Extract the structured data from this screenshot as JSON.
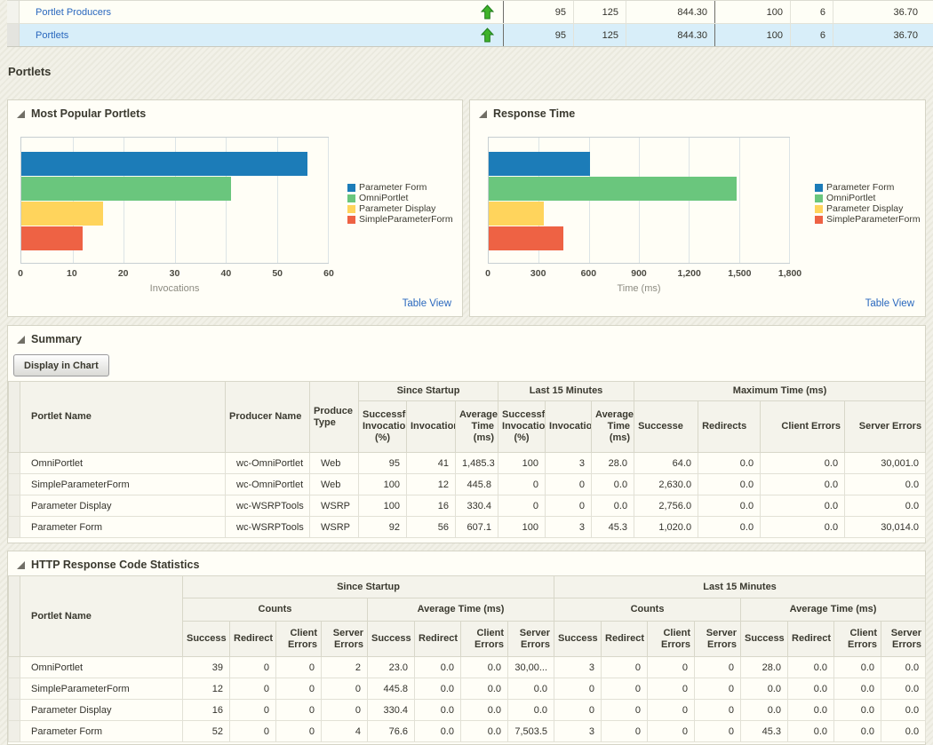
{
  "page": {
    "heading": "Portlets"
  },
  "colors": {
    "link_blue": "#2A68BE",
    "selected_row": "#D8EEF9",
    "trend_arrow_green": "#3FB32A",
    "bar_blue": "#1C7CB8",
    "bar_green": "#6AC67D",
    "bar_yellow": "#FFD45C",
    "bar_red": "#EE6244"
  },
  "top_table": {
    "rows": [
      {
        "label": "Portlet Producers",
        "trend_icon": "green-up-arrow",
        "values": [
          "95",
          "125",
          "844.30",
          "100",
          "6",
          "36.70"
        ],
        "selected": false
      },
      {
        "label": "Portlets",
        "trend_icon": "green-up-arrow",
        "values": [
          "95",
          "125",
          "844.30",
          "100",
          "6",
          "36.70"
        ],
        "selected": true
      }
    ]
  },
  "chart_data": [
    {
      "type": "bar",
      "orientation": "horizontal",
      "title": "Most Popular Portlets",
      "categories": [
        "Parameter Form",
        "OmniPortlet",
        "Parameter Display",
        "SimpleParameterForm"
      ],
      "values": [
        56,
        41,
        16,
        12
      ],
      "xlabel": "Invocations",
      "xlim": [
        0,
        60
      ],
      "xticks": [
        0,
        10,
        20,
        30,
        40,
        50,
        60
      ],
      "xtick_labels": [
        "0",
        "10",
        "20",
        "30",
        "40",
        "50",
        "60"
      ],
      "bar_colors": [
        "#1C7CB8",
        "#6AC67D",
        "#FFD45C",
        "#EE6244"
      ],
      "legend": [
        "Parameter Form",
        "OmniPortlet",
        "Parameter Display",
        "SimpleParameterForm"
      ],
      "legend_position": "right",
      "grid": "vertical",
      "table_view_label": "Table View"
    },
    {
      "type": "bar",
      "orientation": "horizontal",
      "title": "Response Time",
      "categories": [
        "Parameter Form",
        "OmniPortlet",
        "Parameter Display",
        "SimpleParameterForm"
      ],
      "values": [
        607.1,
        1485.3,
        330.4,
        445.8
      ],
      "xlabel": "Time (ms)",
      "xlim": [
        0,
        1800
      ],
      "xticks": [
        0,
        300,
        600,
        900,
        1200,
        1500,
        1800
      ],
      "xtick_labels": [
        "0",
        "300",
        "600",
        "900",
        "1,200",
        "1,500",
        "1,800"
      ],
      "bar_colors": [
        "#1C7CB8",
        "#6AC67D",
        "#FFD45C",
        "#EE6244"
      ],
      "legend": [
        "Parameter Form",
        "OmniPortlet",
        "Parameter Display",
        "SimpleParameterForm"
      ],
      "legend_position": "right",
      "grid": "vertical",
      "table_view_label": "Table View"
    }
  ],
  "summary": {
    "title": "Summary",
    "button_label": "Display in Chart",
    "table": {
      "portlet_name_header": "Portlet Name",
      "producer_name_header": "Producer Name",
      "producer_type_header": "Produce Type",
      "groups": [
        "Since Startup",
        "Last 15 Minutes",
        "Maximum Time (ms)"
      ],
      "sub_headers": [
        "Successfu Invocation (%)",
        "Invocation",
        "Average Time (ms)",
        "Successfu Invocation (%)",
        "Invocation",
        "Average Time (ms)",
        "Successe",
        "Redirects",
        "Client Errors",
        "Server Errors"
      ],
      "rows": [
        [
          "OmniPortlet",
          "wc-OmniPortlet",
          "Web",
          "95",
          "41",
          "1,485.3",
          "100",
          "3",
          "28.0",
          "64.0",
          "0.0",
          "0.0",
          "30,001.0"
        ],
        [
          "SimpleParameterForm",
          "wc-OmniPortlet",
          "Web",
          "100",
          "12",
          "445.8",
          "0",
          "0",
          "0.0",
          "2,630.0",
          "0.0",
          "0.0",
          "0.0"
        ],
        [
          "Parameter Display",
          "wc-WSRPTools",
          "WSRP",
          "100",
          "16",
          "330.4",
          "0",
          "0",
          "0.0",
          "2,756.0",
          "0.0",
          "0.0",
          "0.0"
        ],
        [
          "Parameter Form",
          "wc-WSRPTools",
          "WSRP",
          "92",
          "56",
          "607.1",
          "100",
          "3",
          "45.3",
          "1,020.0",
          "0.0",
          "0.0",
          "30,014.0"
        ]
      ]
    }
  },
  "http_stats": {
    "title": "HTTP Response Code Statistics",
    "table": {
      "portlet_name_header": "Portlet Name",
      "groups": [
        "Since Startup",
        "Last 15 Minutes"
      ],
      "subgroups": [
        "Counts",
        "Average Time (ms)",
        "Counts",
        "Average Time (ms)"
      ],
      "sub_headers": [
        "Success",
        "Redirect",
        "Client Errors",
        "Server Errors",
        "Success",
        "Redirect",
        "Client Errors",
        "Server Errors",
        "Success",
        "Redirect",
        "Client Errors",
        "Server Errors",
        "Success",
        "Redirect",
        "Client Errors",
        "Server Errors"
      ],
      "rows": [
        [
          "OmniPortlet",
          "39",
          "0",
          "0",
          "2",
          "23.0",
          "0.0",
          "0.0",
          "30,00...",
          "3",
          "0",
          "0",
          "0",
          "28.0",
          "0.0",
          "0.0",
          "0.0"
        ],
        [
          "SimpleParameterForm",
          "12",
          "0",
          "0",
          "0",
          "445.8",
          "0.0",
          "0.0",
          "0.0",
          "0",
          "0",
          "0",
          "0",
          "0.0",
          "0.0",
          "0.0",
          "0.0"
        ],
        [
          "Parameter Display",
          "16",
          "0",
          "0",
          "0",
          "330.4",
          "0.0",
          "0.0",
          "0.0",
          "0",
          "0",
          "0",
          "0",
          "0.0",
          "0.0",
          "0.0",
          "0.0"
        ],
        [
          "Parameter Form",
          "52",
          "0",
          "0",
          "4",
          "76.6",
          "0.0",
          "0.0",
          "7,503.5",
          "3",
          "0",
          "0",
          "0",
          "45.3",
          "0.0",
          "0.0",
          "0.0"
        ]
      ]
    }
  }
}
